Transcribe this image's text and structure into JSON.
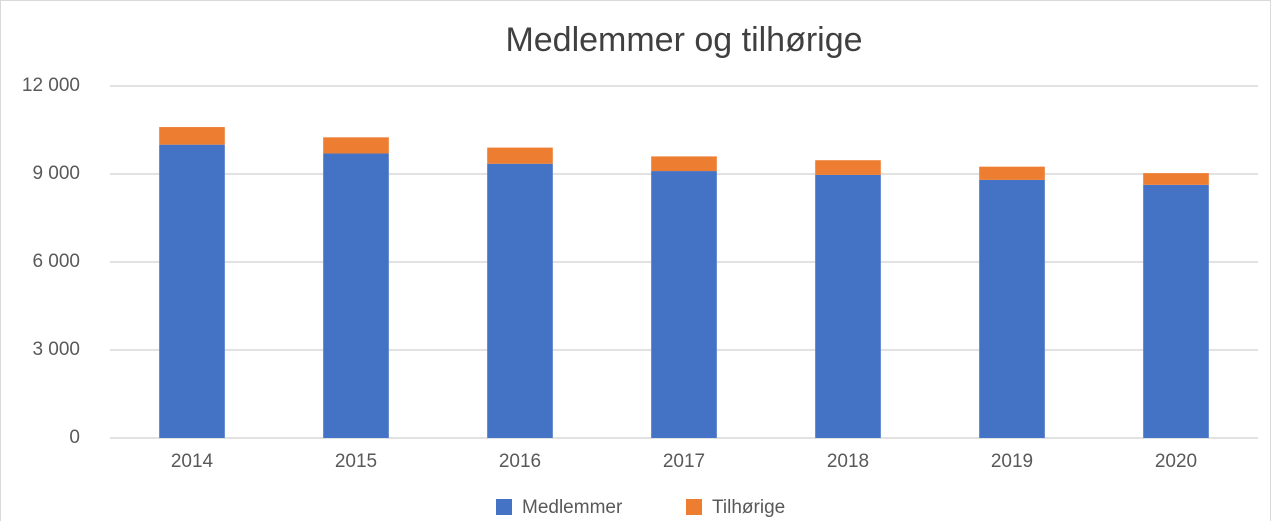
{
  "chart_data": {
    "type": "stacked_bar",
    "title": "Medlemmer og tilhørige",
    "categories": [
      "2014",
      "2015",
      "2016",
      "2017",
      "2018",
      "2019",
      "2020"
    ],
    "series": [
      {
        "name": "Medlemmer",
        "color": "#4472c4",
        "values": [
          10000,
          9700,
          9350,
          9100,
          8970,
          8800,
          8630
        ]
      },
      {
        "name": "Tilhørige",
        "color": "#ed7d31",
        "values": [
          600,
          550,
          550,
          500,
          500,
          450,
          400
        ]
      }
    ],
    "ylim": [
      0,
      12000
    ],
    "yticks": [
      0,
      {
        "value": 3000,
        "label": "3 000"
      },
      {
        "value": 6000,
        "label": "6 000"
      },
      {
        "value": 9000,
        "label": "9 000"
      },
      {
        "value": 12000,
        "label": "12 000"
      }
    ],
    "grid": true,
    "legend": "bottom"
  }
}
